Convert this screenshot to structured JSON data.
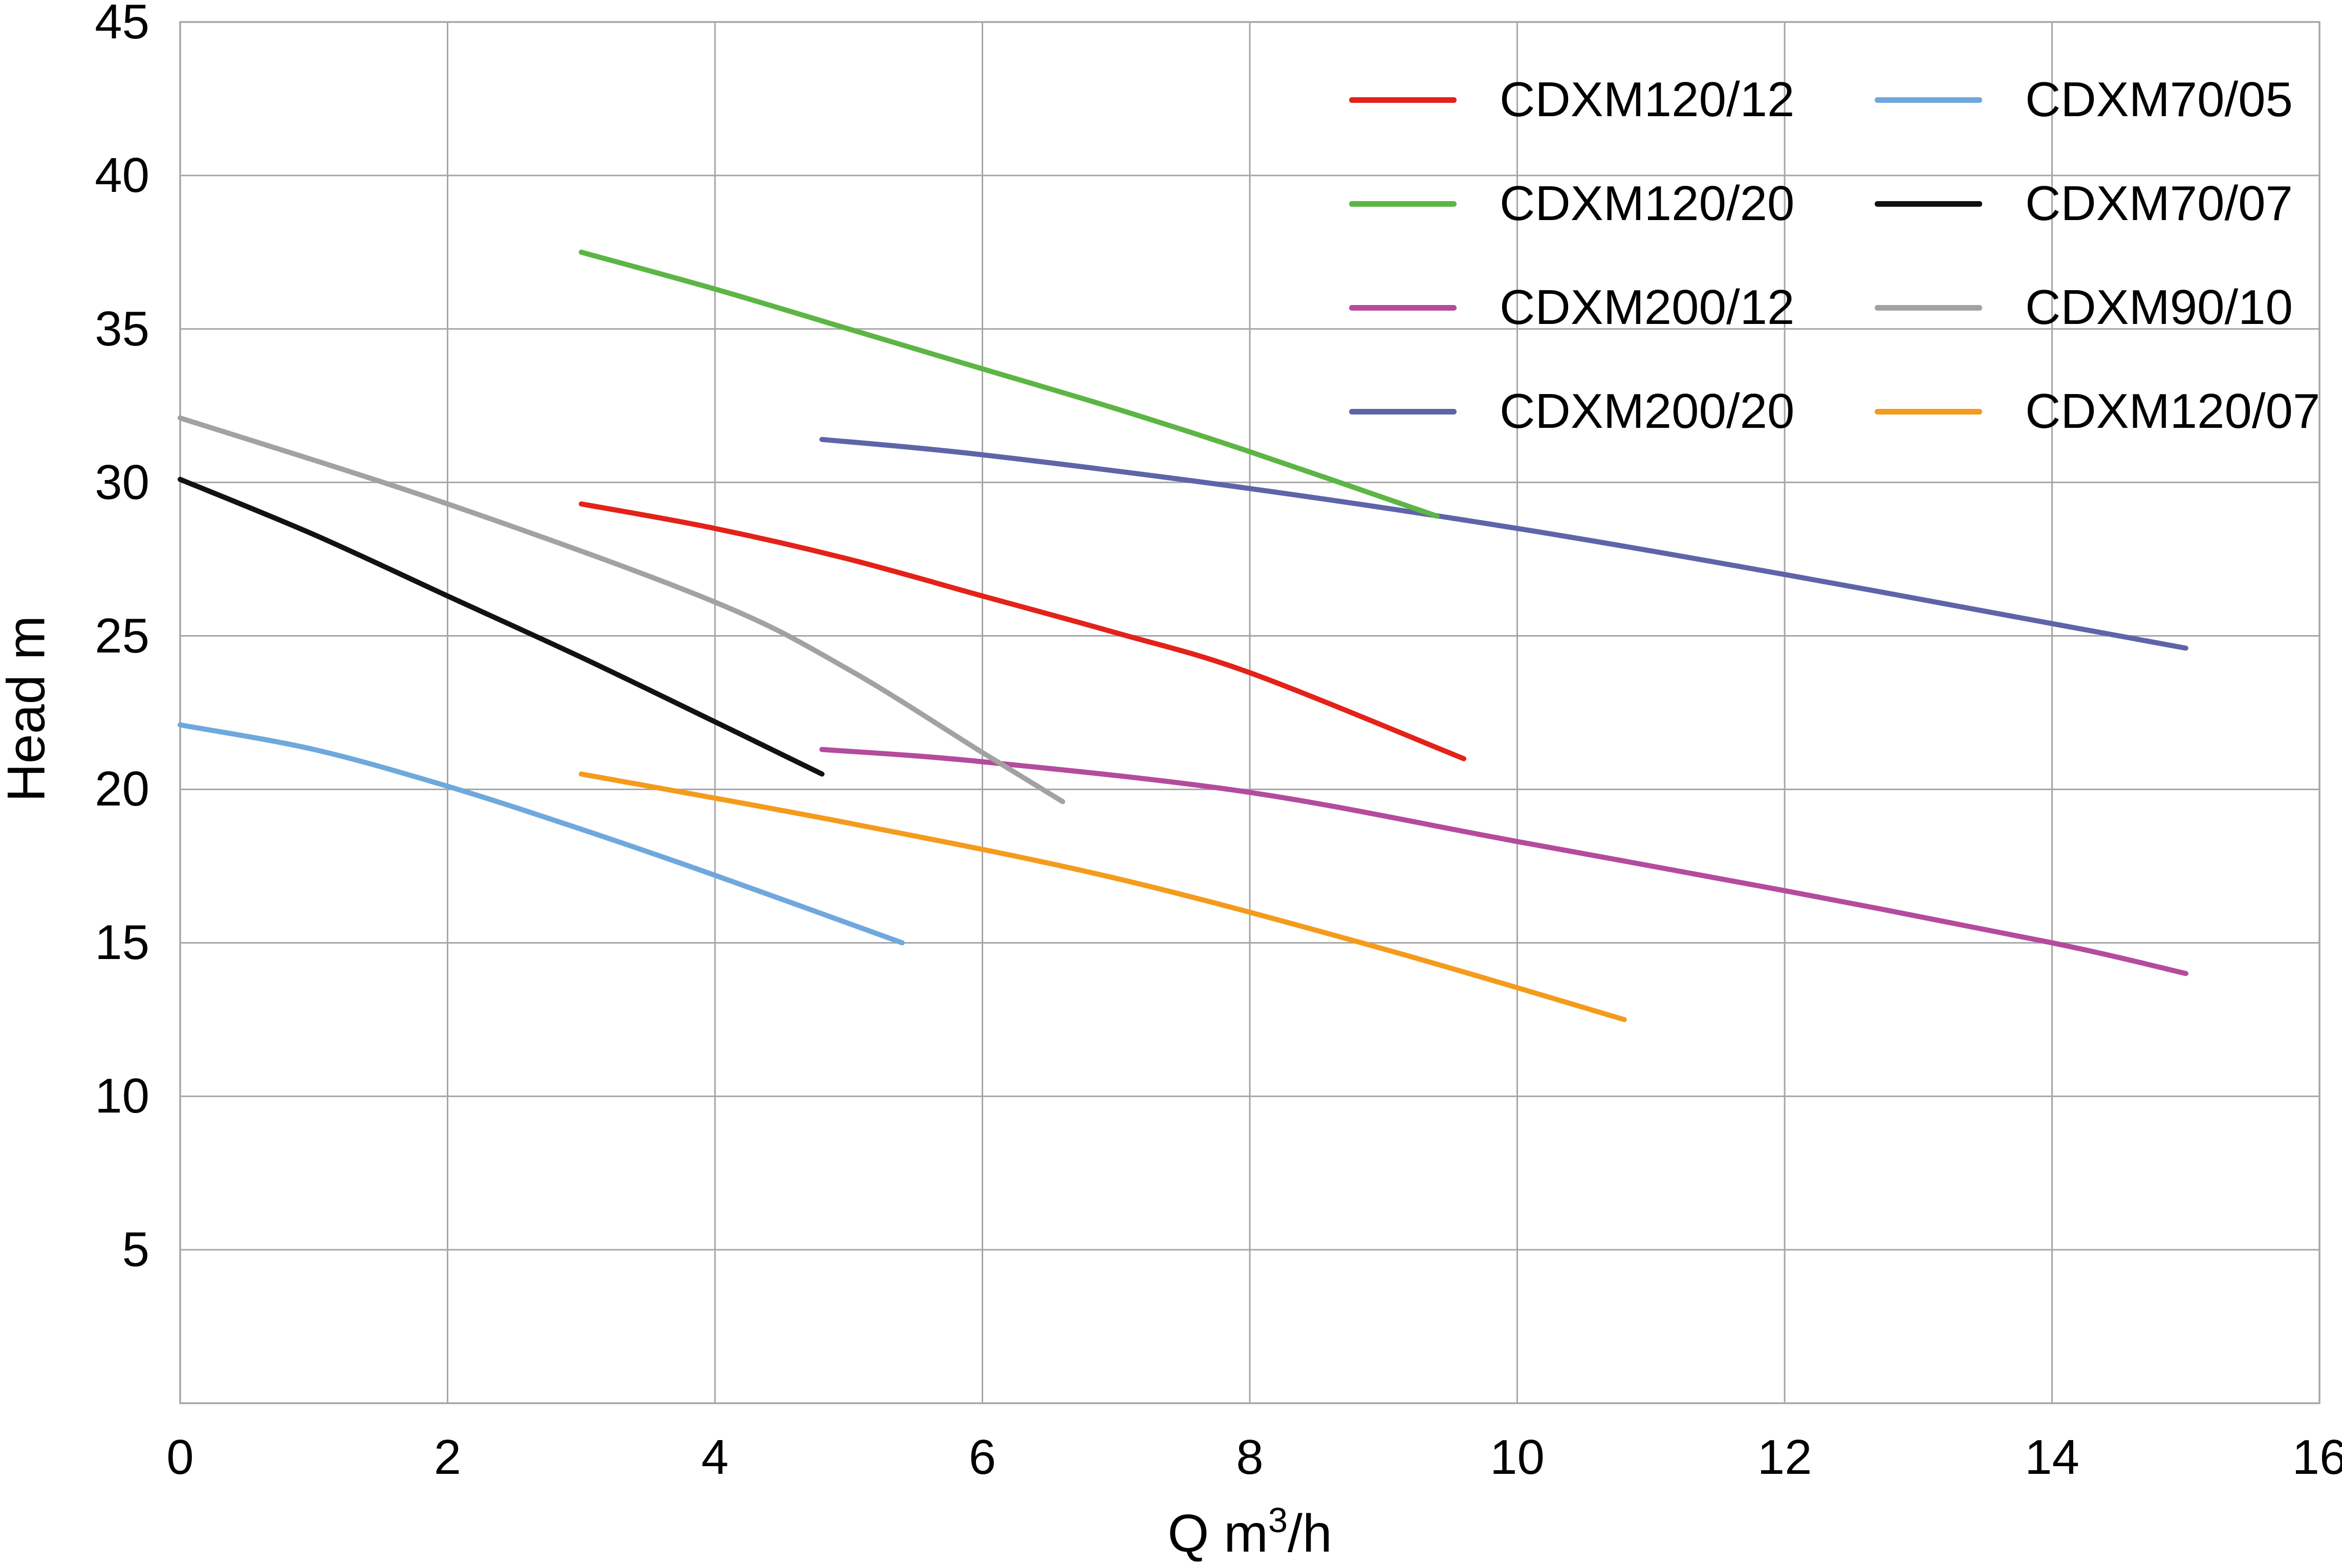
{
  "chart_data": {
    "type": "line",
    "title": "",
    "xlabel": {
      "prefix": "Q m",
      "sup": "3",
      "suffix": "/h"
    },
    "ylabel": "Head m",
    "xlim": [
      0,
      16
    ],
    "ylim": [
      0,
      45
    ],
    "x_ticks": [
      0,
      2,
      4,
      6,
      8,
      10,
      12,
      14,
      16
    ],
    "y_ticks": [
      5,
      10,
      15,
      20,
      25,
      30,
      35,
      40,
      45
    ],
    "grid": true,
    "grid_color": "#a6a6a6",
    "axis_color": "#a6a6a6",
    "text_color": "#000000",
    "background": "#ffffff",
    "legend_position": "top-right-two-columns",
    "legend_columns": [
      [
        "CDXM120/12",
        "CDXM120/20",
        "CDXM200/12",
        "CDXM200/20"
      ],
      [
        "CDXM70/05",
        "CDXM70/07",
        "CDXM90/10",
        "CDXM120/07"
      ]
    ],
    "series": [
      {
        "name": "CDXM120/12",
        "color": "#e32219",
        "points": [
          [
            3,
            29.3
          ],
          [
            4,
            28.5
          ],
          [
            5,
            27.5
          ],
          [
            6,
            26.3
          ],
          [
            7,
            25.1
          ],
          [
            8,
            23.8
          ],
          [
            9.6,
            21.0
          ]
        ]
      },
      {
        "name": "CDXM120/20",
        "color": "#5cb544",
        "points": [
          [
            3,
            37.5
          ],
          [
            4,
            36.3
          ],
          [
            5,
            35.0
          ],
          [
            6,
            33.7
          ],
          [
            7,
            32.4
          ],
          [
            8,
            31.0
          ],
          [
            9.4,
            28.9
          ]
        ]
      },
      {
        "name": "CDXM200/12",
        "color": "#b44b9d",
        "points": [
          [
            4.8,
            21.3
          ],
          [
            6,
            20.9
          ],
          [
            8,
            19.9
          ],
          [
            10,
            18.3
          ],
          [
            12,
            16.7
          ],
          [
            14,
            15.0
          ],
          [
            15,
            14.0
          ]
        ]
      },
      {
        "name": "CDXM200/20",
        "color": "#5f64a9",
        "points": [
          [
            4.8,
            31.4
          ],
          [
            6,
            30.9
          ],
          [
            8,
            29.8
          ],
          [
            10,
            28.5
          ],
          [
            12,
            27.0
          ],
          [
            14,
            25.4
          ],
          [
            15,
            24.6
          ]
        ]
      },
      {
        "name": "CDXM70/05",
        "color": "#6fa8dc",
        "points": [
          [
            0,
            22.1
          ],
          [
            1,
            21.3
          ],
          [
            2,
            20.1
          ],
          [
            3,
            18.7
          ],
          [
            4,
            17.2
          ],
          [
            5.4,
            15.0
          ]
        ]
      },
      {
        "name": "CDXM70/07",
        "color": "#121212",
        "points": [
          [
            0,
            30.1
          ],
          [
            1,
            28.3
          ],
          [
            2,
            26.3
          ],
          [
            3,
            24.3
          ],
          [
            4,
            22.2
          ],
          [
            4.8,
            20.5
          ]
        ]
      },
      {
        "name": "CDXM90/10",
        "color": "#a2a2a2",
        "points": [
          [
            0,
            32.1
          ],
          [
            2,
            29.3
          ],
          [
            4,
            26.1
          ],
          [
            5,
            23.9
          ],
          [
            6,
            21.2
          ],
          [
            6.6,
            19.6
          ]
        ]
      },
      {
        "name": "CDXM120/07",
        "color": "#f49b1c",
        "points": [
          [
            3,
            20.5
          ],
          [
            5,
            18.9
          ],
          [
            7,
            17.1
          ],
          [
            9,
            14.8
          ],
          [
            10.8,
            12.5
          ]
        ]
      }
    ]
  }
}
